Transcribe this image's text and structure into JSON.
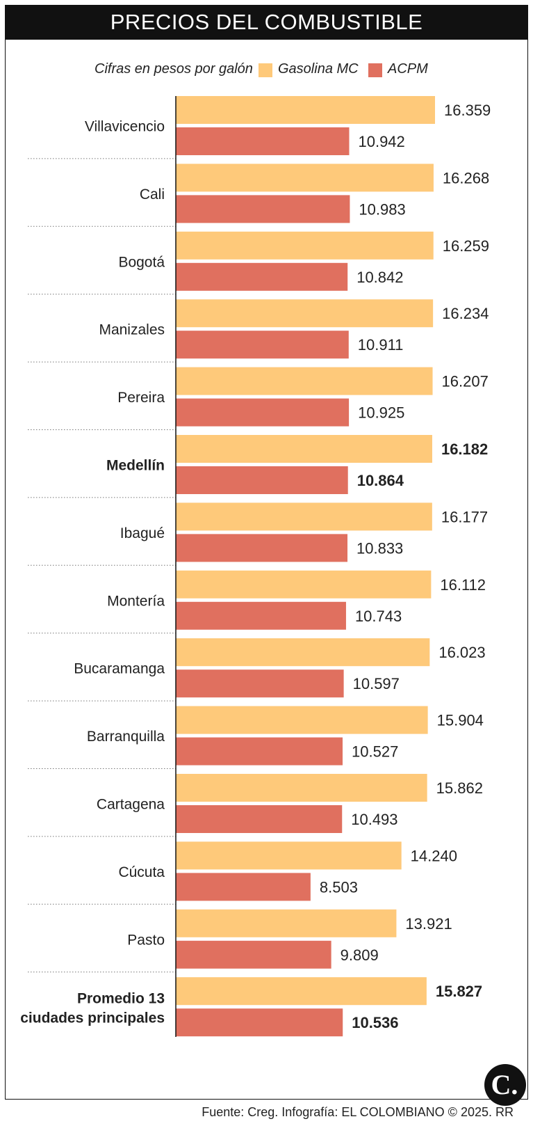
{
  "header": {
    "title": "PRECIOS DEL COMBUSTIBLE"
  },
  "legend": {
    "note": "Cifras en pesos por galón",
    "items": [
      {
        "label": "Gasolina MC",
        "color": "#fec97a"
      },
      {
        "label": "ACPM",
        "color": "#e0705f"
      }
    ]
  },
  "chart_data": {
    "type": "bar",
    "orientation": "horizontal",
    "title": "PRECIOS DEL COMBUSTIBLE",
    "xlabel": "Cifras en pesos por galón",
    "ylabel": "",
    "xlim": [
      0,
      16359
    ],
    "grid": false,
    "legend_position": "top",
    "categories": [
      "Villavicencio",
      "Cali",
      "Bogotá",
      "Manizales",
      "Pereira",
      "Medellín",
      "Ibagué",
      "Montería",
      "Bucaramanga",
      "Barranquilla",
      "Cartagena",
      "Cúcuta",
      "Pasto",
      "Promedio 13 ciudades principales"
    ],
    "highlighted": [
      "Medellín",
      "Promedio 13 ciudades principales"
    ],
    "series": [
      {
        "name": "Gasolina MC",
        "color": "#fec97a",
        "values": [
          16359,
          16268,
          16259,
          16234,
          16207,
          16182,
          16177,
          16112,
          16023,
          15904,
          15862,
          14240,
          13921,
          15827
        ],
        "labels": [
          "16.359",
          "16.268",
          "16.259",
          "16.234",
          "16.207",
          "16.182",
          "16.177",
          "16.112",
          "16.023",
          "15.904",
          "15.862",
          "14.240",
          "13.921",
          "15.827"
        ]
      },
      {
        "name": "ACPM",
        "color": "#e0705f",
        "values": [
          10942,
          10983,
          10842,
          10911,
          10925,
          10864,
          10833,
          10743,
          10597,
          10527,
          10493,
          8503,
          9809,
          10536
        ],
        "labels": [
          "10.942",
          "10.983",
          "10.842",
          "10.911",
          "10.925",
          "10.864",
          "10.833",
          "10.743",
          "10.597",
          "10.527",
          "10.493",
          "8.503",
          "9.809",
          "10.536"
        ]
      }
    ]
  },
  "footer": {
    "source": "Fuente: Creg. Infografía: EL COLOMBIANO © 2025. RR"
  },
  "logo": {
    "text": "C."
  }
}
